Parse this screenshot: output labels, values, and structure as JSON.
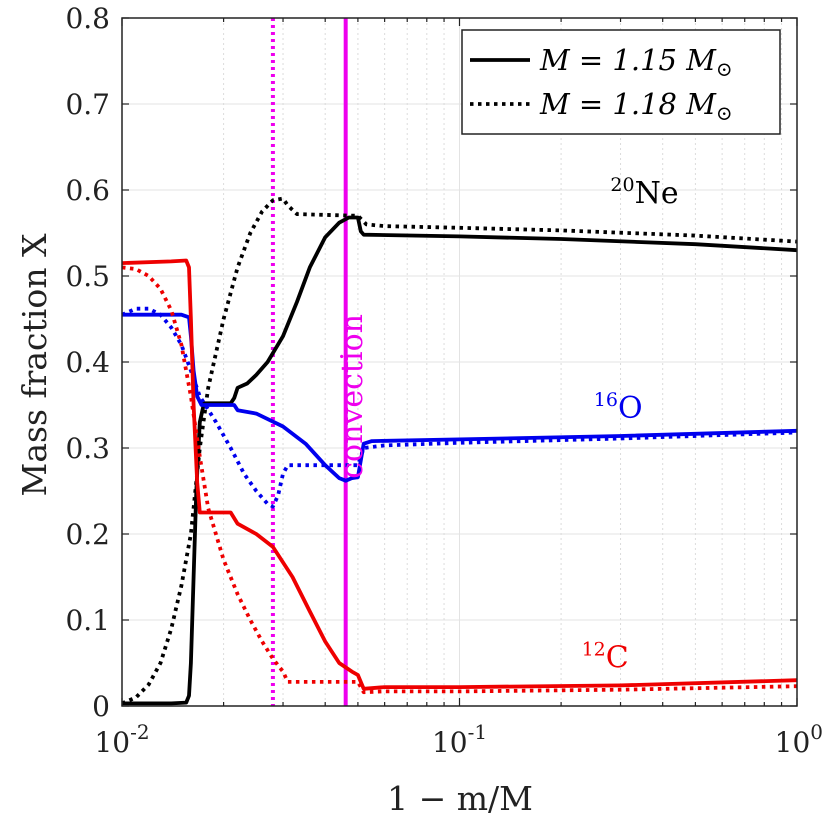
{
  "chart_data": {
    "type": "line",
    "x_scale": "log",
    "xlim": [
      0.01,
      1
    ],
    "ylim": [
      0,
      0.8
    ],
    "xlabel": "1 − m/M",
    "ylabel": "Mass fraction X",
    "x_ticks": [
      {
        "value": 0.01,
        "base": "10",
        "exp": "-2"
      },
      {
        "value": 0.1,
        "base": "10",
        "exp": "-1"
      },
      {
        "value": 1,
        "base": "10",
        "exp": "0"
      }
    ],
    "y_ticks": [
      {
        "value": 0,
        "label": "0"
      },
      {
        "value": 0.1,
        "label": "0.1"
      },
      {
        "value": 0.2,
        "label": "0.2"
      },
      {
        "value": 0.3,
        "label": "0.3"
      },
      {
        "value": 0.4,
        "label": "0.4"
      },
      {
        "value": 0.5,
        "label": "0.5"
      },
      {
        "value": 0.6,
        "label": "0.6"
      },
      {
        "value": 0.7,
        "label": "0.7"
      },
      {
        "value": 0.8,
        "label": "0.8"
      }
    ],
    "legend": {
      "position": "top-right",
      "entries": [
        {
          "style": "solid",
          "prefix": "M = 1.15 M",
          "subscript": "⊙"
        },
        {
          "style": "dotted",
          "prefix": "M = 1.18 M",
          "subscript": "⊙"
        }
      ]
    },
    "colors": {
      "ne": "#000000",
      "o": "#0000ee",
      "c": "#ee0000",
      "convection": "#ee00ee"
    },
    "vlines": [
      {
        "name": "convection-boundary-1.15",
        "x": 0.046,
        "style": "solid"
      },
      {
        "name": "convection-boundary-1.18",
        "x": 0.028,
        "style": "dotted"
      }
    ],
    "annotations": [
      {
        "name": "convection-label",
        "text": "convection",
        "x": 0.05,
        "y": 0.36
      },
      {
        "name": "ne20-label",
        "sup": "20",
        "text": "Ne",
        "x": 0.28,
        "y": 0.585
      },
      {
        "name": "o16-label",
        "sup": "16",
        "text": "O",
        "x": 0.25,
        "y": 0.335
      },
      {
        "name": "c12-label",
        "sup": "12",
        "text": "C",
        "x": 0.23,
        "y": 0.045
      }
    ],
    "series": [
      {
        "name": "Ne20-M1.15",
        "isotope": "ne",
        "mass": "1.15",
        "style": "solid",
        "points": [
          [
            0.01,
            0.003
          ],
          [
            0.014,
            0.003
          ],
          [
            0.0155,
            0.004
          ],
          [
            0.0158,
            0.012
          ],
          [
            0.016,
            0.05
          ],
          [
            0.0163,
            0.15
          ],
          [
            0.0166,
            0.25
          ],
          [
            0.017,
            0.33
          ],
          [
            0.0175,
            0.352
          ],
          [
            0.02,
            0.352
          ],
          [
            0.021,
            0.352
          ],
          [
            0.0215,
            0.358
          ],
          [
            0.022,
            0.37
          ],
          [
            0.0235,
            0.375
          ],
          [
            0.025,
            0.385
          ],
          [
            0.027,
            0.4
          ],
          [
            0.03,
            0.43
          ],
          [
            0.033,
            0.47
          ],
          [
            0.036,
            0.51
          ],
          [
            0.04,
            0.545
          ],
          [
            0.044,
            0.562
          ],
          [
            0.047,
            0.568
          ],
          [
            0.05,
            0.568
          ],
          [
            0.051,
            0.552
          ],
          [
            0.052,
            0.548
          ],
          [
            0.1,
            0.546
          ],
          [
            0.2,
            0.543
          ],
          [
            0.5,
            0.537
          ],
          [
            1,
            0.53
          ]
        ]
      },
      {
        "name": "Ne20-M1.18",
        "isotope": "ne",
        "mass": "1.18",
        "style": "dotted",
        "points": [
          [
            0.01,
            0.003
          ],
          [
            0.011,
            0.01
          ],
          [
            0.012,
            0.025
          ],
          [
            0.013,
            0.05
          ],
          [
            0.014,
            0.09
          ],
          [
            0.015,
            0.14
          ],
          [
            0.016,
            0.2
          ],
          [
            0.017,
            0.3
          ],
          [
            0.018,
            0.37
          ],
          [
            0.02,
            0.45
          ],
          [
            0.022,
            0.51
          ],
          [
            0.024,
            0.55
          ],
          [
            0.026,
            0.575
          ],
          [
            0.028,
            0.588
          ],
          [
            0.03,
            0.59
          ],
          [
            0.031,
            0.582
          ],
          [
            0.033,
            0.572
          ],
          [
            0.05,
            0.57
          ],
          [
            0.053,
            0.56
          ],
          [
            0.06,
            0.558
          ],
          [
            0.1,
            0.556
          ],
          [
            0.2,
            0.553
          ],
          [
            0.5,
            0.547
          ],
          [
            1,
            0.54
          ]
        ]
      },
      {
        "name": "O16-M1.15",
        "isotope": "o",
        "mass": "1.15",
        "style": "solid",
        "points": [
          [
            0.01,
            0.455
          ],
          [
            0.015,
            0.455
          ],
          [
            0.0158,
            0.452
          ],
          [
            0.016,
            0.43
          ],
          [
            0.0163,
            0.39
          ],
          [
            0.0167,
            0.36
          ],
          [
            0.0172,
            0.35
          ],
          [
            0.02,
            0.35
          ],
          [
            0.0215,
            0.35
          ],
          [
            0.022,
            0.344
          ],
          [
            0.025,
            0.34
          ],
          [
            0.03,
            0.325
          ],
          [
            0.035,
            0.305
          ],
          [
            0.04,
            0.28
          ],
          [
            0.044,
            0.265
          ],
          [
            0.046,
            0.262
          ],
          [
            0.048,
            0.265
          ],
          [
            0.05,
            0.266
          ],
          [
            0.052,
            0.305
          ],
          [
            0.055,
            0.308
          ],
          [
            0.1,
            0.31
          ],
          [
            0.3,
            0.314
          ],
          [
            1,
            0.32
          ]
        ]
      },
      {
        "name": "O16-M1.18",
        "isotope": "o",
        "mass": "1.18",
        "style": "dotted",
        "points": [
          [
            0.01,
            0.455
          ],
          [
            0.011,
            0.462
          ],
          [
            0.012,
            0.462
          ],
          [
            0.013,
            0.455
          ],
          [
            0.014,
            0.44
          ],
          [
            0.015,
            0.42
          ],
          [
            0.016,
            0.39
          ],
          [
            0.017,
            0.36
          ],
          [
            0.019,
            0.33
          ],
          [
            0.021,
            0.3
          ],
          [
            0.023,
            0.27
          ],
          [
            0.025,
            0.25
          ],
          [
            0.027,
            0.235
          ],
          [
            0.028,
            0.232
          ],
          [
            0.029,
            0.245
          ],
          [
            0.03,
            0.27
          ],
          [
            0.031,
            0.28
          ],
          [
            0.05,
            0.28
          ],
          [
            0.052,
            0.3
          ],
          [
            0.06,
            0.303
          ],
          [
            0.1,
            0.306
          ],
          [
            0.3,
            0.311
          ],
          [
            1,
            0.318
          ]
        ]
      },
      {
        "name": "C12-M1.15",
        "isotope": "c",
        "mass": "1.15",
        "style": "solid",
        "points": [
          [
            0.01,
            0.515
          ],
          [
            0.014,
            0.517
          ],
          [
            0.0155,
            0.518
          ],
          [
            0.0158,
            0.51
          ],
          [
            0.016,
            0.45
          ],
          [
            0.0163,
            0.35
          ],
          [
            0.0167,
            0.26
          ],
          [
            0.017,
            0.225
          ],
          [
            0.021,
            0.225
          ],
          [
            0.022,
            0.212
          ],
          [
            0.025,
            0.2
          ],
          [
            0.028,
            0.185
          ],
          [
            0.032,
            0.15
          ],
          [
            0.036,
            0.11
          ],
          [
            0.04,
            0.075
          ],
          [
            0.044,
            0.05
          ],
          [
            0.048,
            0.04
          ],
          [
            0.05,
            0.036
          ],
          [
            0.052,
            0.02
          ],
          [
            0.06,
            0.022
          ],
          [
            0.1,
            0.022
          ],
          [
            0.3,
            0.024
          ],
          [
            1,
            0.03
          ]
        ]
      },
      {
        "name": "C12-M1.18",
        "isotope": "c",
        "mass": "1.18",
        "style": "dotted",
        "points": [
          [
            0.01,
            0.51
          ],
          [
            0.011,
            0.508
          ],
          [
            0.012,
            0.5
          ],
          [
            0.013,
            0.485
          ],
          [
            0.014,
            0.46
          ],
          [
            0.015,
            0.42
          ],
          [
            0.016,
            0.36
          ],
          [
            0.017,
            0.29
          ],
          [
            0.018,
            0.23
          ],
          [
            0.02,
            0.17
          ],
          [
            0.022,
            0.13
          ],
          [
            0.024,
            0.1
          ],
          [
            0.026,
            0.075
          ],
          [
            0.028,
            0.055
          ],
          [
            0.03,
            0.04
          ],
          [
            0.031,
            0.028
          ],
          [
            0.05,
            0.028
          ],
          [
            0.052,
            0.016
          ],
          [
            0.06,
            0.017
          ],
          [
            0.1,
            0.017
          ],
          [
            0.3,
            0.019
          ],
          [
            1,
            0.023
          ]
        ]
      }
    ]
  }
}
